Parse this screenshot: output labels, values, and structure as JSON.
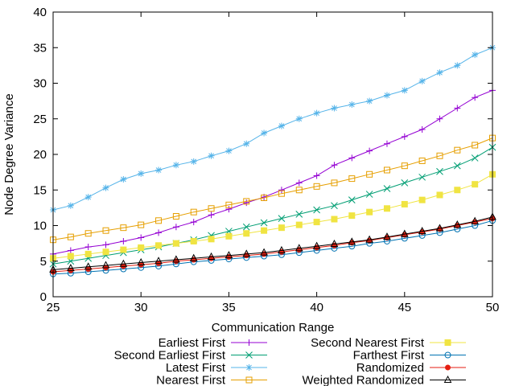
{
  "chart_data": {
    "type": "line",
    "xlabel": "Communication Range",
    "ylabel": "Node Degree Variance",
    "xlim": [
      25,
      50
    ],
    "ylim": [
      0,
      40
    ],
    "xticks": [
      25,
      30,
      35,
      40,
      45,
      50
    ],
    "yticks": [
      0,
      5,
      10,
      15,
      20,
      25,
      30,
      35,
      40
    ],
    "x": [
      25,
      26,
      27,
      28,
      29,
      30,
      31,
      32,
      33,
      34,
      35,
      36,
      37,
      38,
      39,
      40,
      41,
      42,
      43,
      44,
      45,
      46,
      47,
      48,
      49,
      50
    ],
    "legend_position": "bottom (below plot, two columns)",
    "series": [
      {
        "name": "Earliest First",
        "color": "#9400d3",
        "marker": "plus",
        "values": [
          6.0,
          6.5,
          7.0,
          7.3,
          7.8,
          8.3,
          9.0,
          9.8,
          10.5,
          11.5,
          12.3,
          13.2,
          14.0,
          15.0,
          16.0,
          17.0,
          18.5,
          19.5,
          20.5,
          21.5,
          22.5,
          23.5,
          25.0,
          26.5,
          28.0,
          29.0
        ]
      },
      {
        "name": "Second Earliest First",
        "color": "#009e73",
        "marker": "x",
        "values": [
          4.6,
          5.0,
          5.4,
          5.8,
          6.2,
          6.6,
          7.0,
          7.5,
          8.0,
          8.6,
          9.2,
          9.8,
          10.4,
          11.0,
          11.6,
          12.2,
          12.8,
          13.6,
          14.4,
          15.2,
          16.0,
          16.8,
          17.6,
          18.4,
          19.5,
          21.0
        ]
      },
      {
        "name": "Latest First",
        "color": "#56b4e9",
        "marker": "star",
        "values": [
          12.2,
          12.8,
          14.0,
          15.3,
          16.5,
          17.3,
          17.8,
          18.5,
          19.0,
          19.8,
          20.5,
          21.5,
          23.0,
          24.0,
          25.0,
          25.8,
          26.5,
          27.0,
          27.5,
          28.3,
          29.0,
          30.3,
          31.5,
          32.5,
          34.0,
          35.0
        ]
      },
      {
        "name": "Nearest First",
        "color": "#e69f00",
        "marker": "square",
        "values": [
          8.0,
          8.4,
          8.9,
          9.3,
          9.7,
          10.1,
          10.7,
          11.3,
          11.9,
          12.4,
          12.9,
          13.4,
          13.9,
          14.5,
          15.0,
          15.5,
          16.0,
          16.6,
          17.2,
          17.8,
          18.4,
          19.1,
          19.8,
          20.6,
          21.3,
          22.3
        ]
      },
      {
        "name": "Second Nearest First",
        "color": "#f0e442",
        "marker": "filled-square",
        "values": [
          5.4,
          5.7,
          6.0,
          6.3,
          6.6,
          6.9,
          7.2,
          7.5,
          7.8,
          8.1,
          8.5,
          8.9,
          9.3,
          9.7,
          10.1,
          10.5,
          10.9,
          11.4,
          11.9,
          12.4,
          13.0,
          13.6,
          14.3,
          15.0,
          15.8,
          17.2
        ]
      },
      {
        "name": "Farthest First",
        "color": "#0072b2",
        "marker": "circle",
        "values": [
          3.2,
          3.3,
          3.5,
          3.7,
          3.9,
          4.1,
          4.3,
          4.6,
          4.9,
          5.1,
          5.3,
          5.5,
          5.7,
          5.9,
          6.2,
          6.5,
          6.8,
          7.1,
          7.5,
          7.8,
          8.2,
          8.6,
          9.0,
          9.5,
          10.0,
          10.7
        ]
      },
      {
        "name": "Randomized",
        "color": "#e51e10",
        "marker": "filled-circle",
        "values": [
          3.5,
          3.7,
          3.9,
          4.1,
          4.3,
          4.5,
          4.7,
          5.0,
          5.2,
          5.4,
          5.6,
          5.8,
          6.0,
          6.3,
          6.6,
          6.9,
          7.2,
          7.6,
          7.9,
          8.3,
          8.7,
          9.1,
          9.5,
          10.0,
          10.5,
          11.0
        ]
      },
      {
        "name": "Weighted Randomized",
        "color": "#000000",
        "marker": "triangle",
        "values": [
          3.8,
          4.0,
          4.2,
          4.4,
          4.6,
          4.8,
          5.0,
          5.2,
          5.4,
          5.6,
          5.8,
          6.0,
          6.2,
          6.5,
          6.8,
          7.1,
          7.4,
          7.7,
          8.0,
          8.4,
          8.8,
          9.2,
          9.6,
          10.1,
          10.6,
          11.2
        ]
      }
    ]
  }
}
